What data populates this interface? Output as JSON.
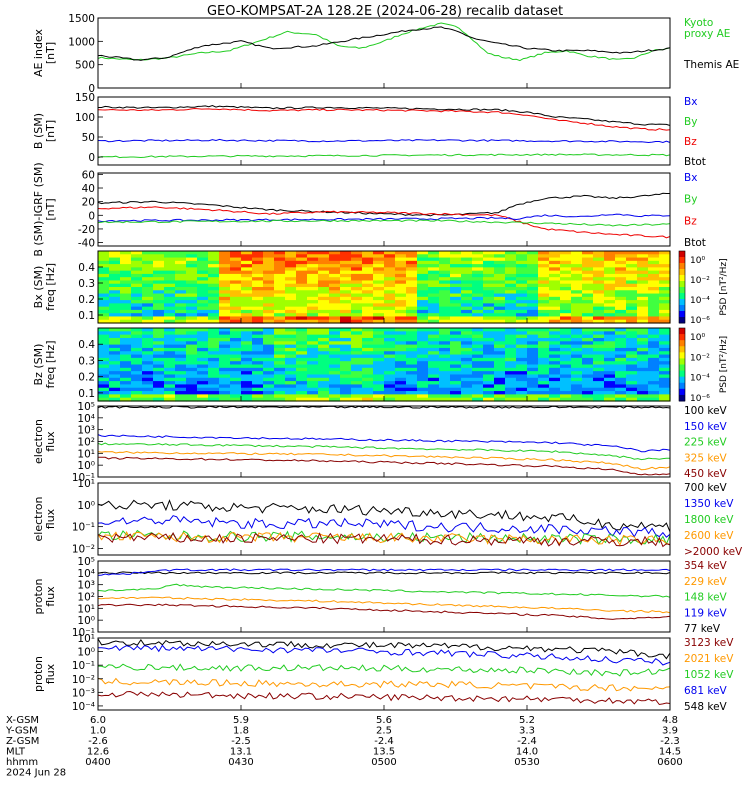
{
  "title": "GEO-KOMPSAT-2A 128.2E (2024-06-28) recalib dataset",
  "chart_data": [
    {
      "id": "ae",
      "type": "line",
      "ylabel": "AE index\n[nT]",
      "ylim": [
        0,
        1500
      ],
      "yticks": [
        "0",
        "500",
        "1000",
        "1500"
      ],
      "legend": [
        {
          "name": "Kyoto\nproxy AE",
          "color": "#22cc22"
        },
        {
          "name": "Themis AE",
          "color": "#000000"
        }
      ],
      "series": [
        {
          "name": "Kyoto proxy AE",
          "color": "#22cc22",
          "x": [
            0,
            0.07,
            0.12,
            0.18,
            0.23,
            0.28,
            0.33,
            0.38,
            0.42,
            0.46,
            0.5,
            0.53,
            0.57,
            0.6,
            0.63,
            0.65,
            0.68,
            0.71,
            0.74,
            0.78,
            0.82,
            0.85,
            0.88,
            0.91,
            0.94,
            0.97,
            1
          ],
          "y": [
            650,
            600,
            640,
            750,
            800,
            1000,
            1200,
            1150,
            900,
            850,
            1000,
            1150,
            1300,
            1380,
            1300,
            1100,
            750,
            650,
            600,
            750,
            800,
            700,
            650,
            600,
            650,
            800,
            850
          ]
        },
        {
          "name": "Themis AE",
          "color": "#000000",
          "x": [
            0,
            0.07,
            0.12,
            0.18,
            0.25,
            0.3,
            0.38,
            0.45,
            0.5,
            0.55,
            0.6,
            0.63,
            0.66,
            0.7,
            0.75,
            0.8,
            0.86,
            0.92,
            1
          ],
          "y": [
            700,
            600,
            650,
            900,
            1000,
            850,
            900,
            1050,
            1150,
            1250,
            1300,
            1200,
            1050,
            950,
            850,
            800,
            800,
            750,
            850
          ]
        }
      ]
    },
    {
      "id": "bfield",
      "type": "line",
      "ylabel": "B (SM)\n[nT]",
      "ylim": [
        -20,
        150
      ],
      "yticks": [
        "0",
        "50",
        "100",
        "150"
      ],
      "legend": [
        {
          "name": "Bx",
          "color": "#0000ee"
        },
        {
          "name": "By",
          "color": "#22cc22"
        },
        {
          "name": "Bz",
          "color": "#ee0000"
        },
        {
          "name": "Btot",
          "color": "#000000"
        }
      ],
      "series": [
        {
          "name": "Btot",
          "color": "#000000",
          "x": [
            0,
            0.1,
            0.2,
            0.3,
            0.4,
            0.5,
            0.6,
            0.7,
            0.75,
            0.8,
            0.85,
            0.9,
            0.95,
            1
          ],
          "y": [
            125,
            123,
            127,
            122,
            124,
            122,
            120,
            118,
            112,
            100,
            95,
            88,
            82,
            80
          ]
        },
        {
          "name": "Bz",
          "color": "#ee0000",
          "x": [
            0,
            0.1,
            0.2,
            0.3,
            0.4,
            0.5,
            0.6,
            0.7,
            0.75,
            0.8,
            0.85,
            0.9,
            0.95,
            1
          ],
          "y": [
            118,
            117,
            121,
            116,
            118,
            117,
            115,
            112,
            105,
            92,
            85,
            76,
            70,
            68
          ]
        },
        {
          "name": "Bx",
          "color": "#0000ee",
          "x": [
            0,
            0.2,
            0.4,
            0.6,
            0.8,
            1
          ],
          "y": [
            40,
            42,
            40,
            42,
            40,
            38
          ]
        },
        {
          "name": "By",
          "color": "#22cc22",
          "x": [
            0,
            0.2,
            0.4,
            0.6,
            0.8,
            1
          ],
          "y": [
            0,
            2,
            3,
            5,
            6,
            5
          ]
        }
      ]
    },
    {
      "id": "bigrf",
      "type": "line",
      "ylabel": "B (SM)-IGRF (SM)\n[nT]",
      "ylim": [
        -45,
        62
      ],
      "yticks": [
        "-40",
        "-20",
        "0",
        "20",
        "40",
        "60"
      ],
      "legend": [
        {
          "name": "Bx",
          "color": "#0000ee"
        },
        {
          "name": "By",
          "color": "#22cc22"
        },
        {
          "name": "Bz",
          "color": "#ee0000"
        },
        {
          "name": "Btot",
          "color": "#000000"
        }
      ],
      "series": [
        {
          "name": "Btot",
          "color": "#000000",
          "x": [
            0,
            0.1,
            0.2,
            0.3,
            0.4,
            0.5,
            0.6,
            0.7,
            0.73,
            0.78,
            0.85,
            0.9,
            0.95,
            1
          ],
          "y": [
            18,
            20,
            15,
            8,
            5,
            2,
            0,
            4,
            15,
            25,
            28,
            25,
            28,
            32
          ]
        },
        {
          "name": "Bz",
          "color": "#ee0000",
          "x": [
            0,
            0.1,
            0.2,
            0.3,
            0.4,
            0.5,
            0.6,
            0.7,
            0.73,
            0.78,
            0.85,
            0.9,
            0.95,
            1
          ],
          "y": [
            10,
            12,
            8,
            2,
            5,
            4,
            2,
            0,
            -8,
            -20,
            -25,
            -28,
            -30,
            -32
          ]
        },
        {
          "name": "Bx",
          "color": "#0000ee",
          "x": [
            0,
            0.2,
            0.4,
            0.6,
            0.7,
            0.73,
            0.78,
            0.85,
            0.9,
            0.95,
            1
          ],
          "y": [
            -8,
            -7,
            -6,
            -5,
            -4,
            -5,
            0,
            -2,
            2,
            -1,
            0
          ]
        },
        {
          "name": "By",
          "color": "#22cc22",
          "x": [
            0,
            0.2,
            0.4,
            0.6,
            0.7,
            0.8,
            0.9,
            1
          ],
          "y": [
            -10,
            -9,
            -8,
            -8,
            -10,
            -12,
            -15,
            -13
          ]
        }
      ]
    },
    {
      "id": "bxpsd",
      "type": "heatmap",
      "ylabel": "Bx (SM)\nfreq [Hz]",
      "ylim": [
        0.05,
        0.5
      ],
      "yticks": [
        "0.1",
        "0.2",
        "0.3",
        "0.4"
      ],
      "colorbar_label": "PSD [nT²/Hz]",
      "colorbar_ticks": [
        "10⁰",
        "10⁻²",
        "10⁻⁴",
        "10⁻⁶"
      ]
    },
    {
      "id": "bzpsd",
      "type": "heatmap",
      "ylabel": "Bz (SM)\nfreq [Hz]",
      "ylim": [
        0.05,
        0.5
      ],
      "yticks": [
        "0.1",
        "0.2",
        "0.3",
        "0.4"
      ],
      "colorbar_label": "PSD [nT²/Hz]",
      "colorbar_ticks": [
        "10⁰",
        "10⁻²",
        "10⁻⁴",
        "10⁻⁶"
      ]
    },
    {
      "id": "eflux1",
      "type": "line",
      "ylabel": "electron\nflux",
      "log": true,
      "ylim": [
        -1,
        5
      ],
      "yticks": [
        "10⁻¹",
        "10⁰",
        "10¹",
        "10²",
        "10³",
        "10⁴",
        "10⁵"
      ],
      "legend": [
        {
          "name": "100 keV",
          "color": "#000000"
        },
        {
          "name": "150 keV",
          "color": "#0000ee"
        },
        {
          "name": "225 keV",
          "color": "#22cc22"
        },
        {
          "name": "325 keV",
          "color": "#ff9900"
        },
        {
          "name": "450 keV",
          "color": "#880000"
        }
      ],
      "series": [
        {
          "name": "100 keV",
          "color": "#000000",
          "x": [
            0,
            0.2,
            0.4,
            0.6,
            0.8,
            0.9,
            0.95,
            1
          ],
          "y": [
            4.9,
            4.9,
            4.9,
            4.9,
            4.9,
            4.9,
            4.9,
            4.9
          ]
        },
        {
          "name": "150 keV",
          "color": "#0000ee",
          "x": [
            0,
            0.2,
            0.4,
            0.6,
            0.8,
            0.9,
            0.95,
            1
          ],
          "y": [
            2.5,
            2.35,
            2.2,
            2.05,
            1.9,
            1.6,
            1.2,
            1.3
          ]
        },
        {
          "name": "225 keV",
          "color": "#22cc22",
          "x": [
            0,
            0.2,
            0.4,
            0.6,
            0.8,
            0.9,
            0.95,
            1
          ],
          "y": [
            1.8,
            1.7,
            1.55,
            1.35,
            1.15,
            0.8,
            0.5,
            0.6
          ]
        },
        {
          "name": "325 keV",
          "color": "#ff9900",
          "x": [
            0,
            0.2,
            0.4,
            0.6,
            0.8,
            0.9,
            0.95,
            1
          ],
          "y": [
            1.1,
            1.0,
            0.9,
            0.7,
            0.45,
            0.15,
            -0.3,
            -0.2
          ]
        },
        {
          "name": "450 keV",
          "color": "#880000",
          "x": [
            0,
            0.2,
            0.4,
            0.6,
            0.8,
            0.9,
            0.95,
            1
          ],
          "y": [
            0.6,
            0.5,
            0.35,
            0.15,
            -0.1,
            -0.4,
            -0.8,
            -0.7
          ]
        }
      ]
    },
    {
      "id": "eflux2",
      "type": "line",
      "ylabel": "electron\nflux",
      "log": true,
      "ylim": [
        -2.3,
        1
      ],
      "yticks": [
        "10⁻²",
        "10⁻¹",
        "10⁰",
        "10¹"
      ],
      "legend": [
        {
          "name": "700 keV",
          "color": "#000000"
        },
        {
          "name": "1350 keV",
          "color": "#0000ee"
        },
        {
          "name": "1800 keV",
          "color": "#22cc22"
        },
        {
          "name": "2600 keV",
          "color": "#ff9900"
        },
        {
          "name": ">2000 keV",
          "color": "#880000"
        }
      ],
      "series": [
        {
          "name": "700 keV",
          "color": "#000000",
          "x": [
            0,
            0.1,
            0.2,
            0.3,
            0.4,
            0.5,
            0.6,
            0.7,
            0.8,
            0.9,
            1
          ],
          "y": [
            -0.05,
            0,
            -0.1,
            -0.15,
            -0.2,
            -0.25,
            -0.35,
            -0.45,
            -0.6,
            -0.9,
            -1.0
          ]
        },
        {
          "name": "1350 keV",
          "color": "#0000ee",
          "x": [
            0,
            0.1,
            0.2,
            0.3,
            0.4,
            0.5,
            0.6,
            0.7,
            0.8,
            0.9,
            1
          ],
          "y": [
            -0.8,
            -0.7,
            -0.8,
            -0.9,
            -0.85,
            -0.9,
            -1.0,
            -1.05,
            -1.1,
            -1.2,
            -1.3
          ]
        },
        {
          "name": "1800 keV",
          "color": "#22cc22",
          "x": [
            0,
            0.2,
            0.4,
            0.6,
            0.8,
            1
          ],
          "y": [
            -1.4,
            -1.45,
            -1.45,
            -1.5,
            -1.55,
            -1.6
          ]
        },
        {
          "name": "2600 keV",
          "color": "#ff9900",
          "x": [
            0,
            0.2,
            0.4,
            0.6,
            0.8,
            1
          ],
          "y": [
            -1.45,
            -1.5,
            -1.5,
            -1.55,
            -1.6,
            -1.65
          ]
        },
        {
          "name": ">2000 keV",
          "color": "#880000",
          "x": [
            0,
            0.2,
            0.4,
            0.6,
            0.8,
            1
          ],
          "y": [
            -1.5,
            -1.55,
            -1.55,
            -1.6,
            -1.65,
            -1.7
          ]
        }
      ]
    },
    {
      "id": "pflux1",
      "type": "line",
      "ylabel": "proton\nflux",
      "log": true,
      "ylim": [
        -1,
        5
      ],
      "yticks": [
        "10⁻¹",
        "10⁰",
        "10¹",
        "10²",
        "10³",
        "10⁴",
        "10⁵"
      ],
      "legend": [
        {
          "name": "354 keV",
          "color": "#880000"
        },
        {
          "name": "229 keV",
          "color": "#ff9900"
        },
        {
          "name": "148 keV",
          "color": "#22cc22"
        },
        {
          "name": "119 keV",
          "color": "#0000ee"
        },
        {
          "name": "77 keV",
          "color": "#000000"
        }
      ],
      "series": [
        {
          "name": "77 keV",
          "color": "#000000",
          "x": [
            0,
            0.05,
            0.1,
            0.2,
            0.4,
            0.6,
            0.8,
            1
          ],
          "y": [
            4.0,
            4.0,
            4.0,
            4.0,
            4.0,
            4.0,
            4.0,
            4.0
          ]
        },
        {
          "name": "119 keV",
          "color": "#0000ee",
          "x": [
            0,
            0.05,
            0.1,
            0.15,
            0.2,
            0.4,
            0.6,
            0.8,
            1
          ],
          "y": [
            3.85,
            3.9,
            4.2,
            4.25,
            4.25,
            4.25,
            4.25,
            4.25,
            4.25
          ]
        },
        {
          "name": "148 keV",
          "color": "#22cc22",
          "x": [
            0,
            0.1,
            0.13,
            0.2,
            0.4,
            0.6,
            0.8,
            1
          ],
          "y": [
            2.5,
            2.6,
            3.0,
            2.8,
            2.6,
            2.4,
            2.2,
            2.0
          ]
        },
        {
          "name": "229 keV",
          "color": "#ff9900",
          "x": [
            0,
            0.1,
            0.2,
            0.4,
            0.6,
            0.8,
            0.9,
            1
          ],
          "y": [
            1.85,
            1.9,
            1.8,
            1.6,
            1.3,
            1.0,
            0.8,
            0.7
          ]
        },
        {
          "name": "354 keV",
          "color": "#880000",
          "x": [
            0,
            0.1,
            0.2,
            0.4,
            0.6,
            0.8,
            0.9,
            1
          ],
          "y": [
            1.25,
            1.3,
            1.2,
            1.0,
            0.7,
            0.4,
            0.1,
            0.3
          ]
        }
      ]
    },
    {
      "id": "pflux2",
      "type": "line",
      "ylabel": "proton\nflux",
      "log": true,
      "ylim": [
        -4.3,
        1
      ],
      "yticks": [
        "10⁻⁴",
        "10⁻³",
        "10⁻²",
        "10⁻¹",
        "10⁰",
        "10¹"
      ],
      "legend": [
        {
          "name": "3123 keV",
          "color": "#880000"
        },
        {
          "name": "2021 keV",
          "color": "#ff9900"
        },
        {
          "name": "1052 keV",
          "color": "#22cc22"
        },
        {
          "name": "681 keV",
          "color": "#0000ee"
        },
        {
          "name": "548 keV",
          "color": "#000000"
        }
      ],
      "series": [
        {
          "name": "548 keV",
          "color": "#000000",
          "x": [
            0,
            0.2,
            0.4,
            0.6,
            0.8,
            0.9,
            1
          ],
          "y": [
            0.7,
            0.6,
            0.5,
            0.4,
            0.2,
            0,
            -0.3
          ]
        },
        {
          "name": "681 keV",
          "color": "#0000ee",
          "x": [
            0,
            0.2,
            0.4,
            0.6,
            0.8,
            0.9,
            1
          ],
          "y": [
            0.3,
            0.2,
            0.1,
            -0.1,
            -0.4,
            -0.6,
            -0.8
          ]
        },
        {
          "name": "1052 keV",
          "color": "#22cc22",
          "x": [
            0,
            0.2,
            0.4,
            0.6,
            0.8,
            0.9,
            1
          ],
          "y": [
            -1.1,
            -1.2,
            -1.2,
            -1.3,
            -1.4,
            -1.6,
            -1.4
          ]
        },
        {
          "name": "2021 keV",
          "color": "#ff9900",
          "x": [
            0,
            0.2,
            0.4,
            0.6,
            0.8,
            1
          ],
          "y": [
            -2.2,
            -2.3,
            -2.4,
            -2.4,
            -2.6,
            -2.7
          ]
        },
        {
          "name": "3123 keV",
          "color": "#880000",
          "x": [
            0,
            0.2,
            0.4,
            0.6,
            0.8,
            1
          ],
          "y": [
            -3.1,
            -3.2,
            -3.3,
            -3.4,
            -3.5,
            -3.7
          ]
        }
      ]
    }
  ],
  "axis_footer": {
    "row_labels": [
      "X-GSM",
      "Y-GSM",
      "Z-GSM",
      "MLT",
      "hhmm",
      "2024 Jun 28"
    ],
    "columns": [
      [
        "6.0",
        "1.0",
        "-2.6",
        "12.6",
        "0400"
      ],
      [
        "5.9",
        "1.8",
        "-2.5",
        "13.1",
        "0430"
      ],
      [
        "5.6",
        "2.5",
        "-2.4",
        "13.5",
        "0500"
      ],
      [
        "5.2",
        "3.3",
        "-2.4",
        "14.0",
        "0530"
      ],
      [
        "4.8",
        "3.9",
        "-2.3",
        "14.5",
        "0600"
      ]
    ]
  }
}
